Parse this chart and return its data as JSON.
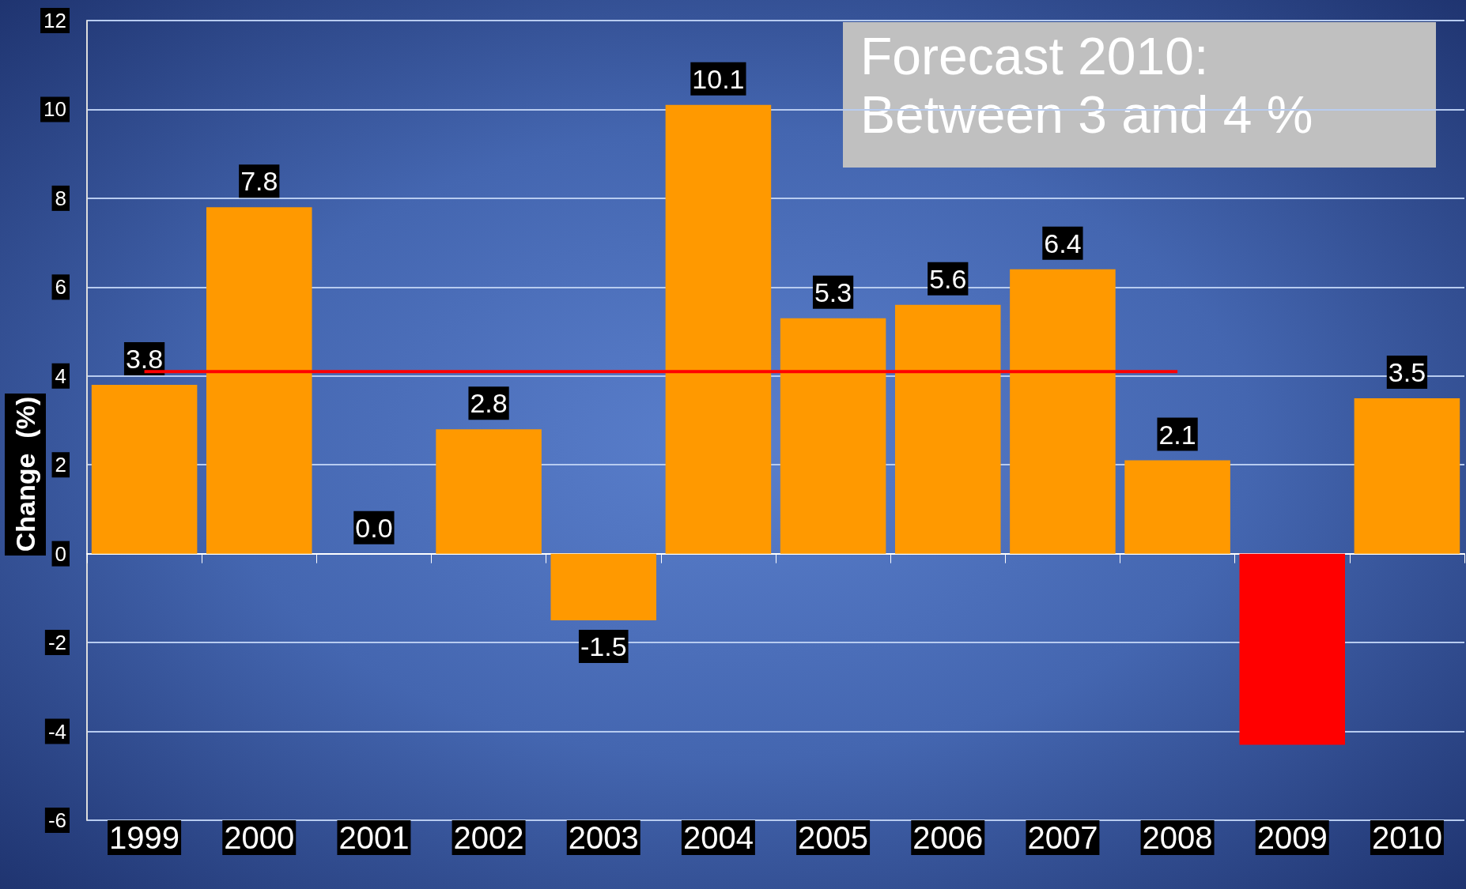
{
  "chart_data": {
    "type": "bar",
    "ylabel": "Change  (%)",
    "categories": [
      "1999",
      "2000",
      "2001",
      "2002",
      "2003",
      "2004",
      "2005",
      "2006",
      "2007",
      "2008",
      "2009",
      "2010"
    ],
    "series": [
      {
        "colors": [
          "#ff9900",
          "#ff9900",
          "#ff9900",
          "#ff9900",
          "#ff9900",
          "#ff9900",
          "#ff9900",
          "#ff9900",
          "#ff9900",
          "#ff9900",
          "#ff0000",
          "#ff9900"
        ],
        "values": [
          3.8,
          7.8,
          0.0,
          2.8,
          -1.5,
          10.1,
          5.3,
          5.6,
          6.4,
          2.1,
          -4.3,
          3.5
        ],
        "value_labels": [
          "3.8",
          "7.8",
          "0.0",
          "2.8",
          "-1.5",
          "10.1",
          "5.3",
          "5.6",
          "6.4",
          "2.1",
          null,
          "3.5"
        ]
      },
      {
        "type": "line",
        "color": "#ff0000",
        "marker": "none",
        "values": [
          4.1,
          4.1,
          4.1,
          4.1,
          4.1,
          4.1,
          4.1,
          4.1,
          4.1,
          4.1,
          null,
          null
        ]
      }
    ],
    "annotations": [
      "Forecast 2010:\nBetween 3 and 4 %"
    ],
    "ylim": [
      -6,
      12
    ],
    "yticks": [
      -6,
      -4,
      -2,
      0,
      2,
      4,
      6,
      8,
      10,
      12
    ],
    "grid": "y"
  }
}
